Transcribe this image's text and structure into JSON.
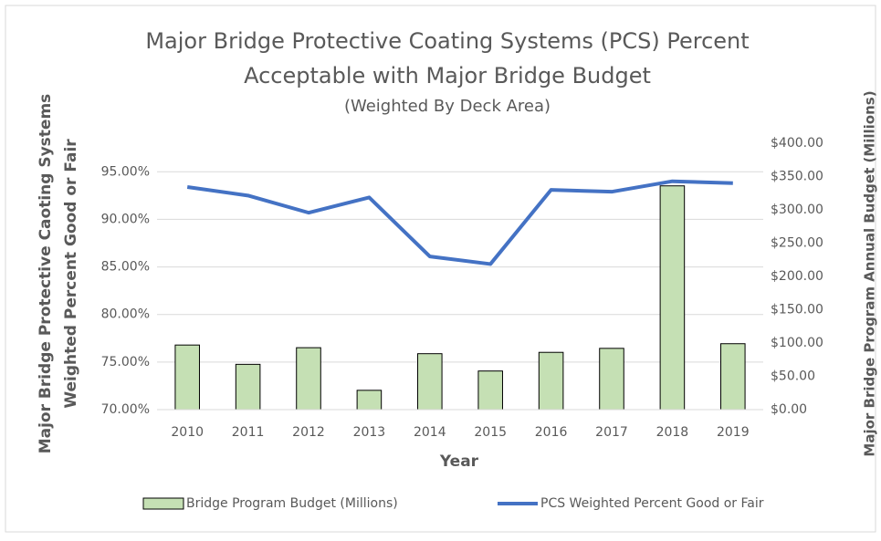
{
  "chart_data": {
    "type": "bar-line",
    "title": "Major Bridge Protective Coating Systems (PCS)  Percent Acceptable with Major Bridge Budget",
    "subtitle": "(Weighted By Deck Area)",
    "xlabel": "Year",
    "ylabel": "Major Bridge Protective Caoting Systems Weighted Percent Good or Fair",
    "y2label": "Major Bridge Program Annual Budget (Millions)",
    "categories": [
      "2010",
      "2011",
      "2012",
      "2013",
      "2014",
      "2015",
      "2016",
      "2017",
      "2018",
      "2019"
    ],
    "series": [
      {
        "name": "Bridge Program Budget (Millions)",
        "type": "bar",
        "axis": "y2",
        "color": "#c5e0b4",
        "values": [
          97,
          68,
          93,
          29,
          84,
          58,
          86,
          92,
          336,
          99
        ]
      },
      {
        "name": "PCS Weighted Percent Good or Fair",
        "type": "line",
        "color": "#4472c4",
        "values": [
          93.4,
          92.5,
          90.7,
          92.3,
          86.1,
          85.3,
          93.1,
          92.9,
          94.0,
          93.8
        ]
      }
    ],
    "ylim": [
      70,
      98
    ],
    "yticks": [
      {
        "value": 70,
        "label": "70.00%"
      },
      {
        "value": 75,
        "label": "75.00%"
      },
      {
        "value": 80,
        "label": "80.00%"
      },
      {
        "value": 85,
        "label": "85.00%"
      },
      {
        "value": 90,
        "label": "90.00%"
      },
      {
        "value": 95,
        "label": "95.00%"
      }
    ],
    "y2lim": [
      0,
      400
    ],
    "y2ticks": [
      {
        "value": 0,
        "label": "$0.00"
      },
      {
        "value": 50,
        "label": "$50.00"
      },
      {
        "value": 100,
        "label": "$100.00"
      },
      {
        "value": 150,
        "label": "$150.00"
      },
      {
        "value": 200,
        "label": "$200.00"
      },
      {
        "value": 250,
        "label": "$250.00"
      },
      {
        "value": 300,
        "label": "$300.00"
      },
      {
        "value": 350,
        "label": "$350.00"
      },
      {
        "value": 400,
        "label": "$400.00"
      }
    ],
    "grid": true
  }
}
